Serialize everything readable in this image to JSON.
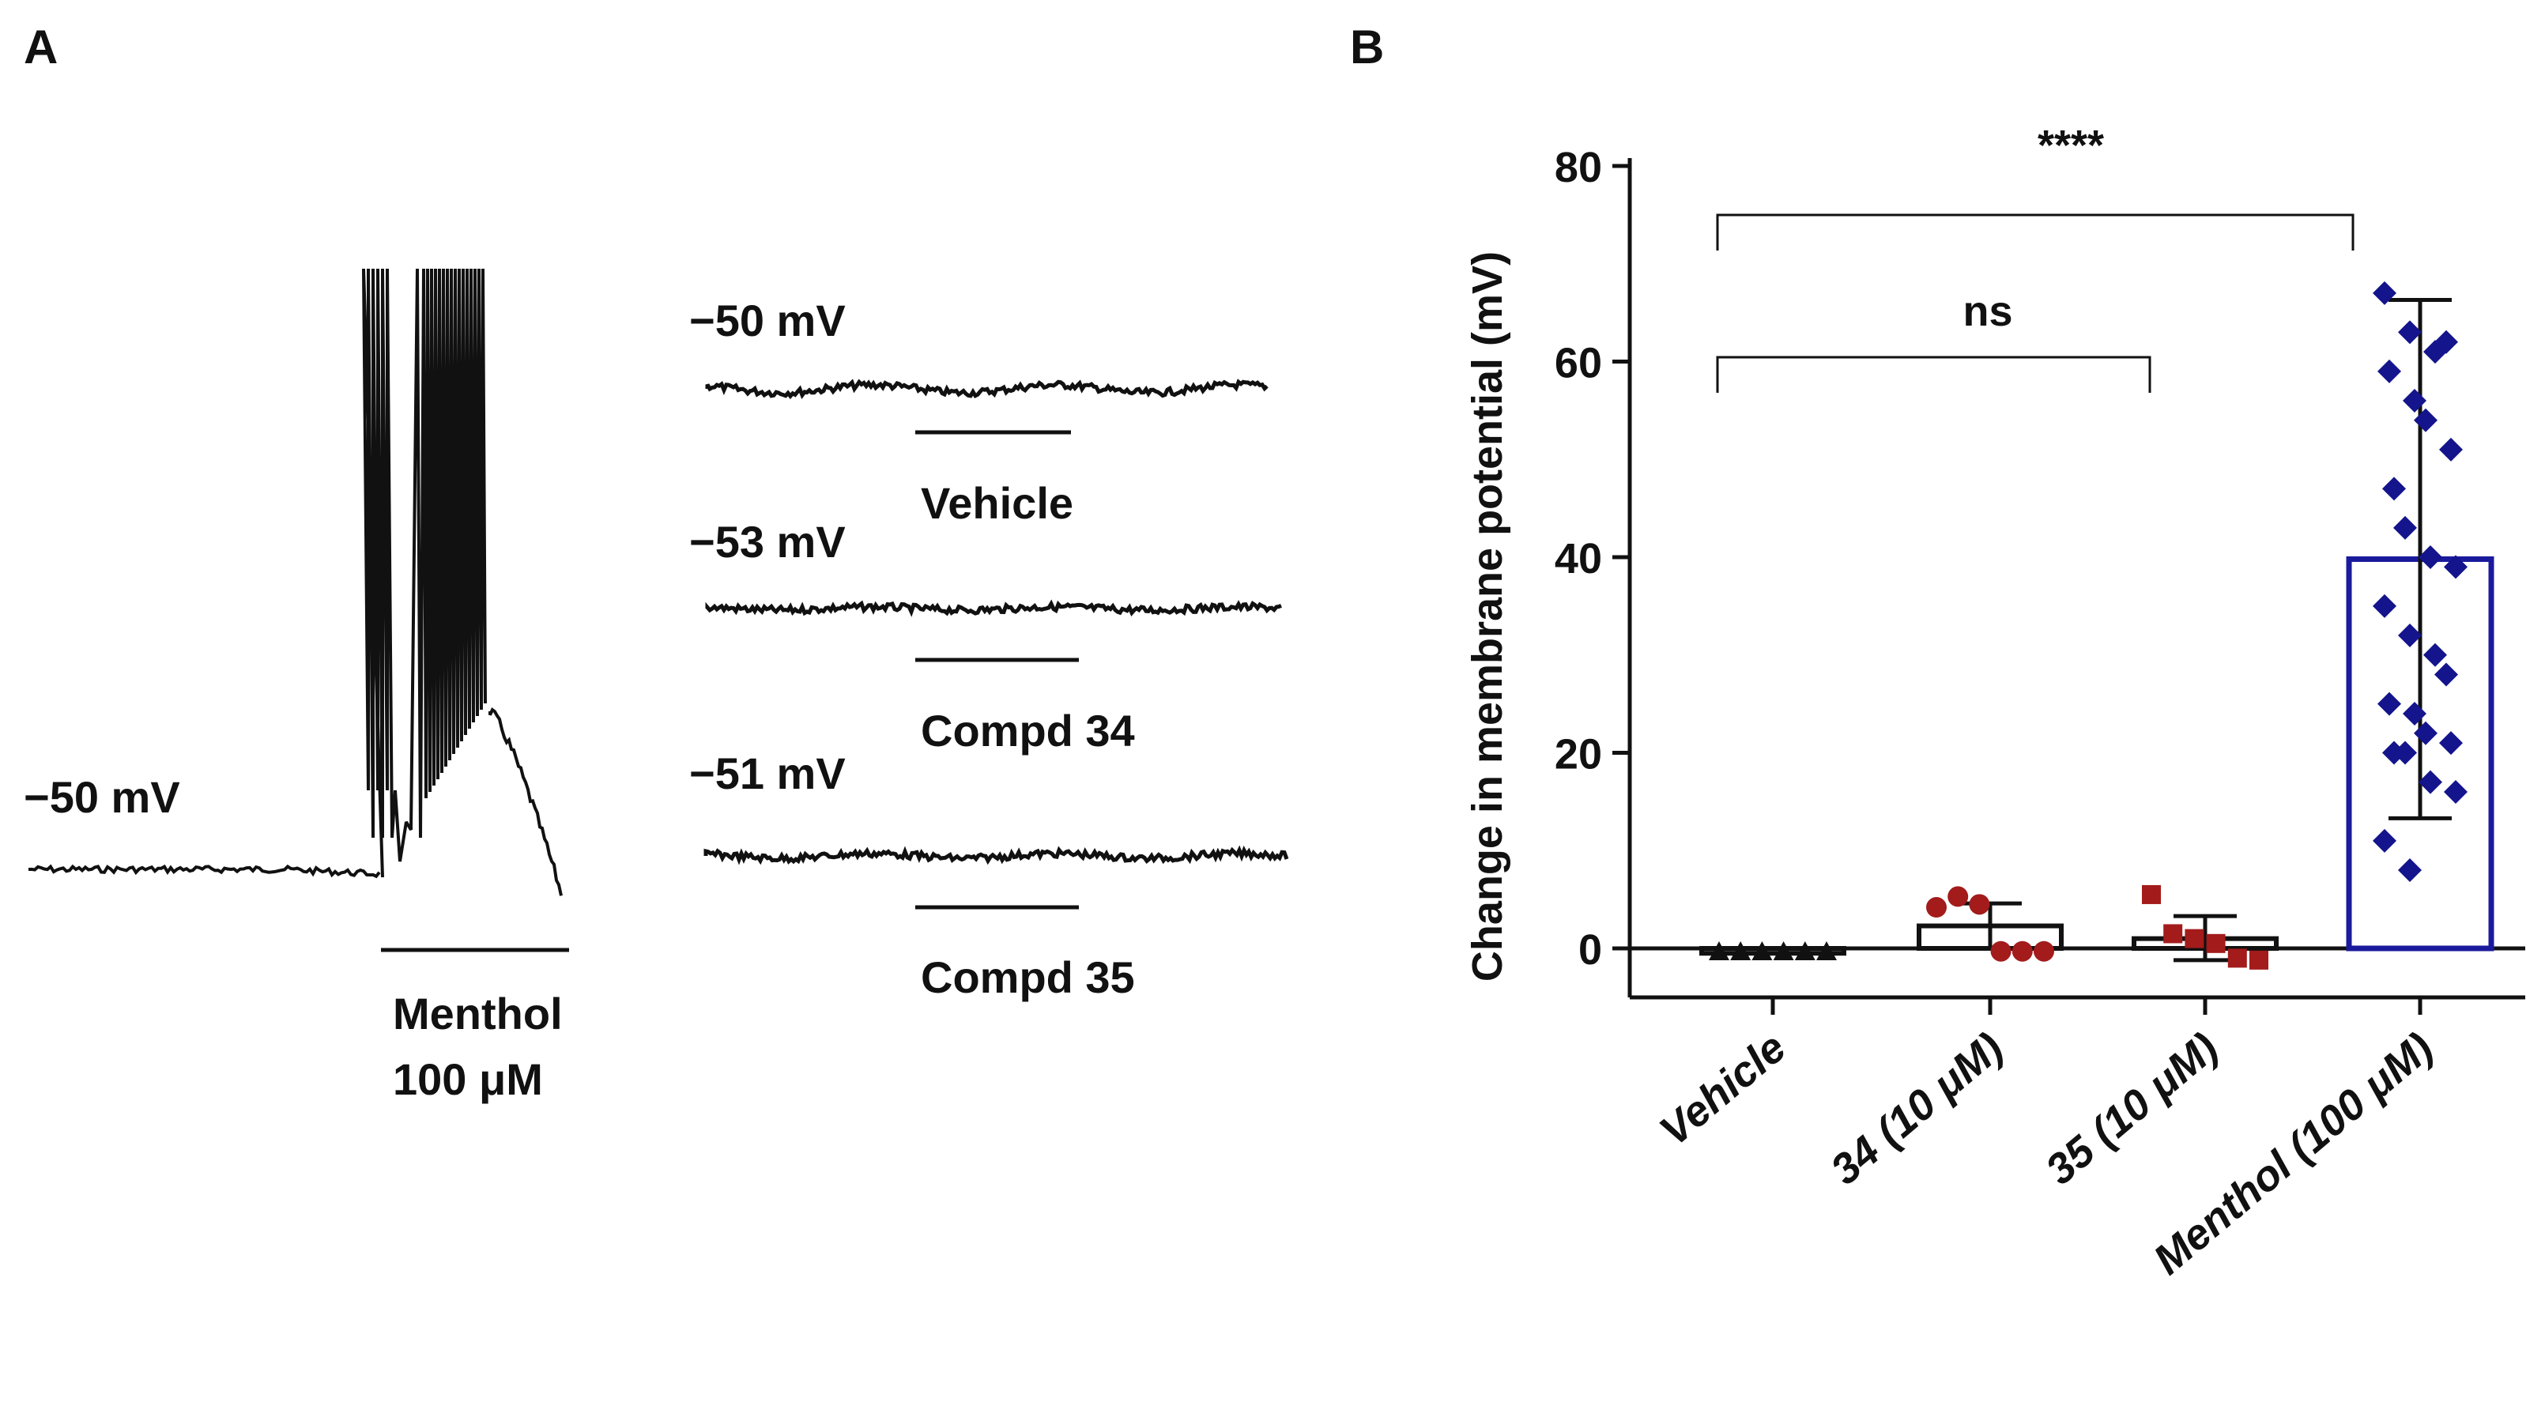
{
  "panel_a": {
    "label": "A",
    "main_trace": {
      "baseline_label": "−50 mV",
      "stim_label_line1": "Menthol",
      "stim_label_line2": "100 μM"
    },
    "traces": [
      {
        "baseline_label": "−50 mV",
        "stim_label": "Vehicle"
      },
      {
        "baseline_label": "−53 mV",
        "stim_label": "Compd 34"
      },
      {
        "baseline_label": "−51 mV",
        "stim_label": "Compd 35"
      }
    ]
  },
  "panel_b": {
    "label": "B"
  },
  "chart_data": {
    "type": "bar",
    "ylabel": "Change in membrane potential (mV)",
    "ylim": [
      -5,
      80
    ],
    "yticks": [
      0,
      20,
      40,
      60,
      80
    ],
    "ytick_labels": [
      "0",
      "20",
      "40",
      "60",
      "80"
    ],
    "categories": [
      "Vehicle",
      "34 (10 μM)",
      "35 (10 μM)",
      "Menthol (100 μM)"
    ],
    "means": [
      -0.5,
      2.3,
      1.0,
      39.8
    ],
    "error_bars": [
      [
        -0.5,
        -0.5
      ],
      [
        0,
        4.6
      ],
      [
        -1.2,
        3.3
      ],
      [
        13.3,
        66.3
      ]
    ],
    "bar_colors": [
      "#111111",
      "#111111",
      "#111111",
      "#1a1a9c"
    ],
    "point_colors": [
      "#111111",
      "#a31b1b",
      "#a31b1b",
      "#14148c"
    ],
    "points": [
      [
        -0.4,
        -0.4,
        -0.4,
        -0.4,
        -0.4,
        -0.4
      ],
      [
        4.2,
        5.3,
        4.5,
        -0.3,
        -0.3,
        -0.3
      ],
      [
        5.5,
        1.5,
        1.0,
        0.5,
        -1.0,
        -1.2
      ],
      [
        67,
        63,
        61,
        62,
        59,
        56,
        54,
        51,
        47,
        43,
        40,
        39,
        35,
        32,
        30,
        28,
        25,
        24,
        22,
        21,
        20,
        20,
        17,
        16,
        11,
        8
      ]
    ],
    "significance": [
      {
        "label": "ns",
        "from": 0,
        "to": 2
      },
      {
        "label": "****",
        "from": 0,
        "to": 3
      }
    ]
  }
}
